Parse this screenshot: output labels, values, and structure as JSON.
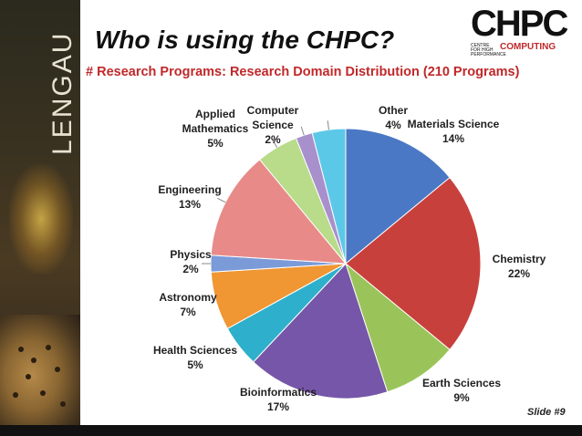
{
  "sidebar": {
    "vertical_text": "LENGAU"
  },
  "logo": {
    "main": "CHPC",
    "small": "CENTRE FOR HIGH PERFORMANCE",
    "sub": "COMPUTING"
  },
  "slide": {
    "number_label": "Slide #9"
  },
  "chart_data": {
    "type": "pie",
    "title": "Who is using the CHPC?",
    "subtitle": "# Research Programs: Research Domain Distribution (210 Programs)",
    "start_angle_deg": 0,
    "direction": "clockwise",
    "slices": [
      {
        "label": "Materials Science",
        "value": 14,
        "pct_label": "14%",
        "color": "#4a78c4"
      },
      {
        "label": "Chemistry",
        "value": 22,
        "pct_label": "22%",
        "color": "#c8403c"
      },
      {
        "label": "Earth Sciences",
        "value": 9,
        "pct_label": "9%",
        "color": "#9ac45a"
      },
      {
        "label": "Bioinformatics",
        "value": 17,
        "pct_label": "17%",
        "color": "#7656a8"
      },
      {
        "label": "Health Sciences",
        "value": 5,
        "pct_label": "5%",
        "color": "#2eb0cc"
      },
      {
        "label": "Astronomy",
        "value": 7,
        "pct_label": "7%",
        "color": "#f09632"
      },
      {
        "label": "Physics",
        "value": 2,
        "pct_label": "2%",
        "color": "#7a9ad8"
      },
      {
        "label": "Engineering",
        "value": 13,
        "pct_label": "13%",
        "color": "#e88a88"
      },
      {
        "label": "Applied Mathematics",
        "value": 5,
        "pct_label": "5%",
        "color": "#b8dc8a"
      },
      {
        "label": "Computer Science",
        "value": 2,
        "pct_label": "2%",
        "color": "#a890cc"
      },
      {
        "label": "Other",
        "value": 4,
        "pct_label": "4%",
        "color": "#5cc8e8"
      }
    ]
  }
}
